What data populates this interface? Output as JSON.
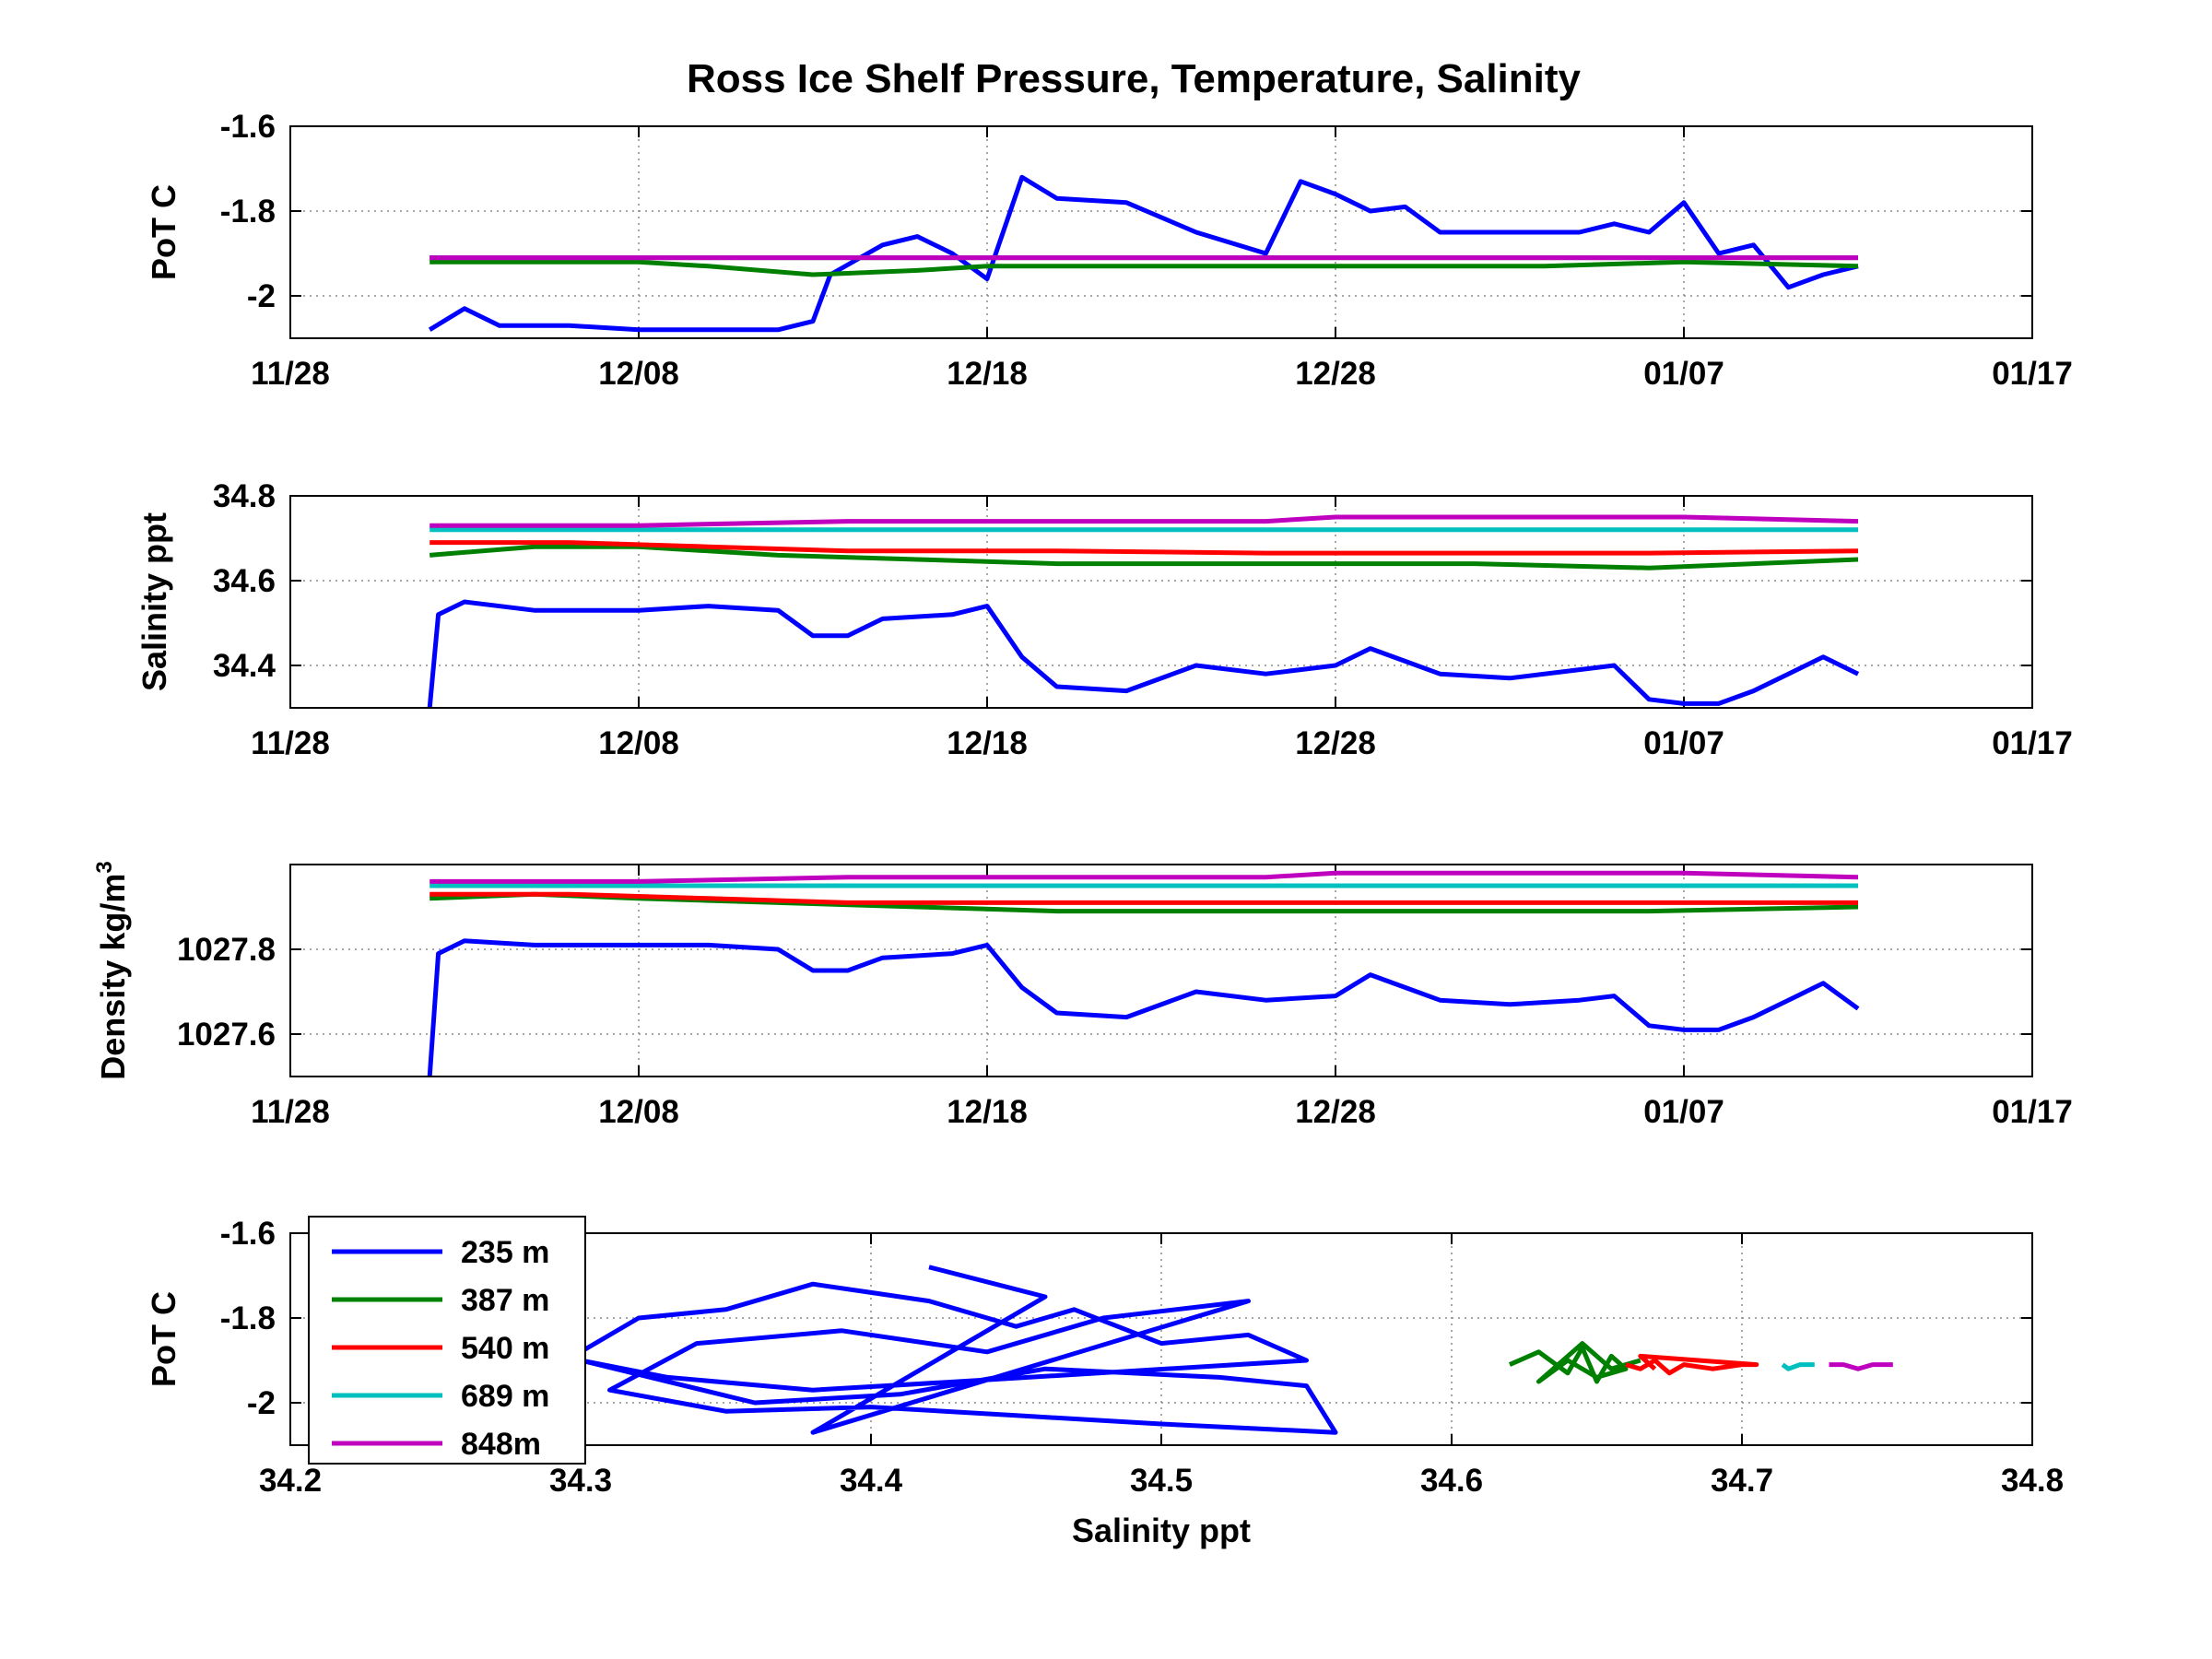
{
  "title": "Ross Ice Shelf Pressure, Temperature, Salinity",
  "colors": {
    "235 m": "#0000ff",
    "387 m": "#008000",
    "540 m": "#ff0000",
    "689 m": "#00bfbf",
    "848m": "#bf00bf"
  },
  "chart_data": [
    {
      "type": "line",
      "panel": "temperature-time",
      "ylabel": "PoT C",
      "x_type": "date",
      "x_ticks": [
        "11/28",
        "12/08",
        "12/18",
        "12/28",
        "01/07",
        "01/17"
      ],
      "x_tick_dates": [
        "2011-11-28",
        "2011-12-08",
        "2011-12-18",
        "2011-12-28",
        "2012-01-07",
        "2012-01-17"
      ],
      "xlim": [
        "2011-11-28",
        "2012-01-17"
      ],
      "y_ticks": [
        "-1.6",
        "-1.8",
        "-2"
      ],
      "ylim": [
        -2.1,
        -1.6
      ],
      "grid": true,
      "series": [
        {
          "name": "235 m",
          "x": [
            "2011-12-02",
            "2011-12-03",
            "2011-12-04",
            "2011-12-06",
            "2011-12-08",
            "2011-12-10",
            "2011-12-12",
            "2011-12-13",
            "2011-12-13T12",
            "2011-12-15",
            "2011-12-16",
            "2011-12-17",
            "2011-12-18",
            "2011-12-19",
            "2011-12-20",
            "2011-12-22",
            "2011-12-24",
            "2011-12-26",
            "2011-12-27",
            "2011-12-28",
            "2011-12-29",
            "2011-12-30",
            "2011-12-31",
            "2012-01-02",
            "2012-01-04",
            "2012-01-05",
            "2012-01-06",
            "2012-01-07",
            "2012-01-08",
            "2012-01-09",
            "2012-01-10",
            "2012-01-11",
            "2012-01-12"
          ],
          "y": [
            -2.08,
            -2.03,
            -2.07,
            -2.07,
            -2.08,
            -2.08,
            -2.08,
            -2.06,
            -1.95,
            -1.88,
            -1.86,
            -1.9,
            -1.96,
            -1.72,
            -1.77,
            -1.78,
            -1.85,
            -1.9,
            -1.73,
            -1.76,
            -1.8,
            -1.79,
            -1.85,
            -1.85,
            -1.85,
            -1.83,
            -1.85,
            -1.78,
            -1.9,
            -1.88,
            -1.98,
            -1.95,
            -1.93
          ]
        },
        {
          "name": "387 m",
          "x": [
            "2011-12-02",
            "2011-12-05",
            "2011-12-08",
            "2011-12-10",
            "2011-12-13",
            "2011-12-16",
            "2011-12-18",
            "2011-12-22",
            "2011-12-26",
            "2011-12-30",
            "2012-01-03",
            "2012-01-07",
            "2012-01-12"
          ],
          "y": [
            -1.92,
            -1.92,
            -1.92,
            -1.93,
            -1.95,
            -1.94,
            -1.93,
            -1.93,
            -1.93,
            -1.93,
            -1.93,
            -1.92,
            -1.93
          ]
        },
        {
          "name": "540 m",
          "x": [
            "2011-12-02",
            "2011-12-08",
            "2011-12-14",
            "2011-12-20",
            "2011-12-26",
            "2012-01-01",
            "2012-01-07",
            "2012-01-12"
          ],
          "y": [
            -1.91,
            -1.91,
            -1.91,
            -1.91,
            -1.91,
            -1.91,
            -1.91,
            -1.91
          ]
        },
        {
          "name": "689 m",
          "x": [
            "2011-12-02",
            "2011-12-08",
            "2011-12-14",
            "2011-12-20",
            "2011-12-26",
            "2012-01-01",
            "2012-01-07",
            "2012-01-12"
          ],
          "y": [
            -1.91,
            -1.91,
            -1.91,
            -1.91,
            -1.91,
            -1.91,
            -1.91,
            -1.91
          ]
        },
        {
          "name": "848m",
          "x": [
            "2011-12-02",
            "2011-12-08",
            "2011-12-14",
            "2011-12-20",
            "2011-12-26",
            "2012-01-01",
            "2012-01-07",
            "2012-01-12"
          ],
          "y": [
            -1.91,
            -1.91,
            -1.91,
            -1.91,
            -1.91,
            -1.91,
            -1.91,
            -1.91
          ]
        }
      ]
    },
    {
      "type": "line",
      "panel": "salinity-time",
      "ylabel": "Salinity ppt",
      "x_type": "date",
      "x_ticks": [
        "11/28",
        "12/08",
        "12/18",
        "12/28",
        "01/07",
        "01/17"
      ],
      "x_tick_dates": [
        "2011-11-28",
        "2011-12-08",
        "2011-12-18",
        "2011-12-28",
        "2012-01-07",
        "2012-01-17"
      ],
      "xlim": [
        "2011-11-28",
        "2012-01-17"
      ],
      "y_ticks": [
        "34.8",
        "34.6",
        "34.4"
      ],
      "ylim": [
        34.3,
        34.8
      ],
      "grid": true,
      "series": [
        {
          "name": "235 m",
          "x": [
            "2011-12-02",
            "2011-12-02T06",
            "2011-12-03",
            "2011-12-05",
            "2011-12-08",
            "2011-12-10",
            "2011-12-12",
            "2011-12-13",
            "2011-12-14",
            "2011-12-15",
            "2011-12-17",
            "2011-12-18",
            "2011-12-19",
            "2011-12-20",
            "2011-12-22",
            "2011-12-24",
            "2011-12-26",
            "2011-12-28",
            "2011-12-29",
            "2011-12-31",
            "2012-01-02",
            "2012-01-04",
            "2012-01-05",
            "2012-01-06",
            "2012-01-07",
            "2012-01-08",
            "2012-01-09",
            "2012-01-10",
            "2012-01-11",
            "2012-01-12"
          ],
          "y": [
            34.3,
            34.52,
            34.55,
            34.53,
            34.53,
            34.54,
            34.53,
            34.47,
            34.47,
            34.51,
            34.52,
            34.54,
            34.42,
            34.35,
            34.34,
            34.4,
            34.38,
            34.4,
            34.44,
            34.38,
            34.37,
            34.39,
            34.4,
            34.32,
            34.31,
            34.31,
            34.34,
            34.38,
            34.42,
            34.38
          ]
        },
        {
          "name": "387 m",
          "x": [
            "2011-12-02",
            "2011-12-05",
            "2011-12-08",
            "2011-12-12",
            "2011-12-16",
            "2011-12-20",
            "2011-12-26",
            "2012-01-01",
            "2012-01-06",
            "2012-01-12"
          ],
          "y": [
            34.66,
            34.68,
            34.68,
            34.66,
            34.65,
            34.64,
            34.64,
            34.64,
            34.63,
            34.65
          ]
        },
        {
          "name": "540 m",
          "x": [
            "2011-12-02",
            "2011-12-06",
            "2011-12-10",
            "2011-12-14",
            "2011-12-20",
            "2011-12-26",
            "2012-01-01",
            "2012-01-06",
            "2012-01-12"
          ],
          "y": [
            34.69,
            34.69,
            34.68,
            34.67,
            34.67,
            34.665,
            34.665,
            34.665,
            34.67
          ]
        },
        {
          "name": "689 m",
          "x": [
            "2011-12-02",
            "2011-12-08",
            "2011-12-14",
            "2011-12-20",
            "2011-12-26",
            "2012-01-01",
            "2012-01-07",
            "2012-01-12"
          ],
          "y": [
            34.72,
            34.72,
            34.72,
            34.72,
            34.72,
            34.72,
            34.72,
            34.72
          ]
        },
        {
          "name": "848m",
          "x": [
            "2011-12-02",
            "2011-12-08",
            "2011-12-14",
            "2011-12-20",
            "2011-12-26",
            "2011-12-28",
            "2012-01-03",
            "2012-01-07",
            "2012-01-12"
          ],
          "y": [
            34.73,
            34.73,
            34.74,
            34.74,
            34.74,
            34.75,
            34.75,
            34.75,
            34.74
          ]
        }
      ]
    },
    {
      "type": "line",
      "panel": "density-time",
      "ylabel": "Density kg/m",
      "ylabel_superscript": "3",
      "x_type": "date",
      "x_ticks": [
        "11/28",
        "12/08",
        "12/18",
        "12/28",
        "01/07",
        "01/17"
      ],
      "x_tick_dates": [
        "2011-11-28",
        "2011-12-08",
        "2011-12-18",
        "2011-12-28",
        "2012-01-07",
        "2012-01-17"
      ],
      "xlim": [
        "2011-11-28",
        "2012-01-17"
      ],
      "y_ticks": [
        "1027.8",
        "1027.6"
      ],
      "ylim": [
        1027.5,
        1028.0
      ],
      "grid": true,
      "series": [
        {
          "name": "235 m",
          "x": [
            "2011-12-02",
            "2011-12-02T06",
            "2011-12-03",
            "2011-12-05",
            "2011-12-08",
            "2011-12-10",
            "2011-12-12",
            "2011-12-13",
            "2011-12-14",
            "2011-12-15",
            "2011-12-17",
            "2011-12-18",
            "2011-12-19",
            "2011-12-20",
            "2011-12-22",
            "2011-12-24",
            "2011-12-26",
            "2011-12-28",
            "2011-12-29",
            "2011-12-31",
            "2012-01-02",
            "2012-01-04",
            "2012-01-05",
            "2012-01-06",
            "2012-01-07",
            "2012-01-08",
            "2012-01-09",
            "2012-01-10",
            "2012-01-11",
            "2012-01-12"
          ],
          "y": [
            1027.5,
            1027.79,
            1027.82,
            1027.81,
            1027.81,
            1027.81,
            1027.8,
            1027.75,
            1027.75,
            1027.78,
            1027.79,
            1027.81,
            1027.71,
            1027.65,
            1027.64,
            1027.7,
            1027.68,
            1027.69,
            1027.74,
            1027.68,
            1027.67,
            1027.68,
            1027.69,
            1027.62,
            1027.61,
            1027.61,
            1027.64,
            1027.68,
            1027.72,
            1027.66
          ]
        },
        {
          "name": "387 m",
          "x": [
            "2011-12-02",
            "2011-12-05",
            "2011-12-08",
            "2011-12-12",
            "2011-12-16",
            "2011-12-20",
            "2011-12-26",
            "2012-01-01",
            "2012-01-06",
            "2012-01-12"
          ],
          "y": [
            1027.92,
            1027.93,
            1027.92,
            1027.91,
            1027.9,
            1027.89,
            1027.89,
            1027.89,
            1027.89,
            1027.9
          ]
        },
        {
          "name": "540 m",
          "x": [
            "2011-12-02",
            "2011-12-06",
            "2011-12-10",
            "2011-12-14",
            "2011-12-20",
            "2011-12-26",
            "2012-01-01",
            "2012-01-06",
            "2012-01-12"
          ],
          "y": [
            1027.93,
            1027.93,
            1027.92,
            1027.91,
            1027.91,
            1027.91,
            1027.91,
            1027.91,
            1027.91
          ]
        },
        {
          "name": "689 m",
          "x": [
            "2011-12-02",
            "2011-12-08",
            "2011-12-14",
            "2011-12-20",
            "2011-12-26",
            "2012-01-01",
            "2012-01-07",
            "2012-01-12"
          ],
          "y": [
            1027.95,
            1027.95,
            1027.95,
            1027.95,
            1027.95,
            1027.95,
            1027.95,
            1027.95
          ]
        },
        {
          "name": "848m",
          "x": [
            "2011-12-02",
            "2011-12-08",
            "2011-12-14",
            "2011-12-20",
            "2011-12-26",
            "2011-12-28",
            "2012-01-03",
            "2012-01-07",
            "2012-01-12"
          ],
          "y": [
            1027.96,
            1027.96,
            1027.97,
            1027.97,
            1027.97,
            1027.98,
            1027.98,
            1027.98,
            1027.97
          ]
        }
      ]
    },
    {
      "type": "scatter",
      "panel": "temperature-salinity",
      "ylabel": "PoT C",
      "xlabel": "Salinity ppt",
      "x_ticks": [
        "34.2",
        "34.3",
        "34.4",
        "34.5",
        "34.6",
        "34.7",
        "34.8"
      ],
      "xlim": [
        34.2,
        34.8
      ],
      "y_ticks": [
        "-1.6",
        "-1.8",
        "-2"
      ],
      "ylim": [
        -2.1,
        -1.6
      ],
      "grid": true,
      "legend": {
        "placement": "top-left",
        "entries": [
          "235 m",
          "387 m",
          "540 m",
          "689 m",
          "848m"
        ]
      },
      "series": [
        {
          "name": "235 m",
          "x": [
            34.3,
            34.32,
            34.35,
            34.38,
            34.4,
            34.42,
            34.45,
            34.47,
            34.5,
            34.53,
            34.55,
            34.43,
            34.38,
            34.33,
            34.3,
            34.36,
            34.41,
            34.46,
            34.52,
            34.55,
            34.56,
            34.5,
            34.45,
            34.4,
            34.35,
            34.31,
            34.34,
            34.39,
            34.44,
            34.48,
            34.53,
            34.38,
            34.46,
            34.42
          ],
          "y": [
            -1.88,
            -1.8,
            -1.78,
            -1.72,
            -1.74,
            -1.76,
            -1.82,
            -1.78,
            -1.86,
            -1.84,
            -1.9,
            -1.95,
            -1.97,
            -1.94,
            -1.9,
            -2.0,
            -1.98,
            -1.92,
            -1.94,
            -1.96,
            -2.07,
            -2.05,
            -2.03,
            -2.01,
            -2.02,
            -1.97,
            -1.86,
            -1.83,
            -1.88,
            -1.8,
            -1.76,
            -2.07,
            -1.75,
            -1.68
          ]
        },
        {
          "name": "387 m",
          "x": [
            34.62,
            34.63,
            34.64,
            34.645,
            34.65,
            34.655,
            34.66,
            34.65,
            34.64,
            34.63,
            34.645,
            34.655,
            34.665
          ],
          "y": [
            -1.91,
            -1.88,
            -1.93,
            -1.87,
            -1.95,
            -1.89,
            -1.92,
            -1.94,
            -1.9,
            -1.95,
            -1.86,
            -1.92,
            -1.9
          ]
        },
        {
          "name": "540 m",
          "x": [
            34.66,
            34.665,
            34.67,
            34.675,
            34.68,
            34.69,
            34.7,
            34.705,
            34.665,
            34.67
          ],
          "y": [
            -1.91,
            -1.92,
            -1.9,
            -1.93,
            -1.91,
            -1.92,
            -1.91,
            -1.91,
            -1.89,
            -1.92
          ]
        },
        {
          "name": "689 m",
          "x": [
            34.714,
            34.716,
            34.72,
            34.725
          ],
          "y": [
            -1.91,
            -1.92,
            -1.91,
            -1.91
          ]
        },
        {
          "name": "848m",
          "x": [
            34.73,
            34.735,
            34.74,
            34.745,
            34.752
          ],
          "y": [
            -1.91,
            -1.91,
            -1.92,
            -1.91,
            -1.91
          ]
        }
      ]
    }
  ]
}
